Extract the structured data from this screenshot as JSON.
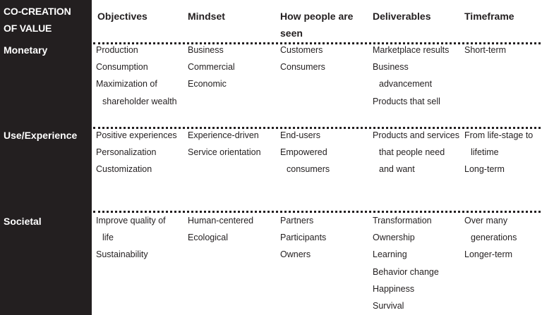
{
  "corner_title": [
    "CO-CREATION",
    "OF VALUE"
  ],
  "columns": [
    "Objectives",
    "Mindset",
    "How people are",
    "Deliverables",
    "Timeframe"
  ],
  "columns_continued": {
    "how_people": "seen"
  },
  "rows": [
    {
      "label": "Monetary",
      "objectives": [
        "Production",
        "Consumption",
        "Maximization of",
        "shareholder wealth"
      ],
      "mindset": [
        "Business",
        "Commercial",
        "Economic"
      ],
      "people": [
        "Customers",
        "Consumers"
      ],
      "deliverables": [
        "Marketplace results",
        "Business",
        "advancement",
        "Products that sell"
      ],
      "timeframe": [
        "Short-term"
      ]
    },
    {
      "label": "Use/Experience",
      "objectives": [
        "Positive experiences",
        "Personalization",
        "Customization"
      ],
      "mindset": [
        "Experience-driven",
        "Service orientation"
      ],
      "people": [
        "End-users",
        "Empowered",
        "consumers"
      ],
      "deliverables": [
        "Products and services",
        "that people need",
        "and want"
      ],
      "timeframe": [
        "From life-stage to",
        "lifetime",
        "Long-term"
      ]
    },
    {
      "label": "Societal",
      "objectives": [
        "Improve quality of",
        "life",
        "Sustainability"
      ],
      "mindset": [
        "Human-centered",
        "Ecological"
      ],
      "people": [
        "Partners",
        "Participants",
        "Owners"
      ],
      "deliverables": [
        "Transformation",
        "Ownership",
        "Learning",
        "Behavior change",
        "Happiness",
        "Survival"
      ],
      "timeframe": [
        "Over many",
        "generations",
        "Longer-term"
      ]
    }
  ]
}
